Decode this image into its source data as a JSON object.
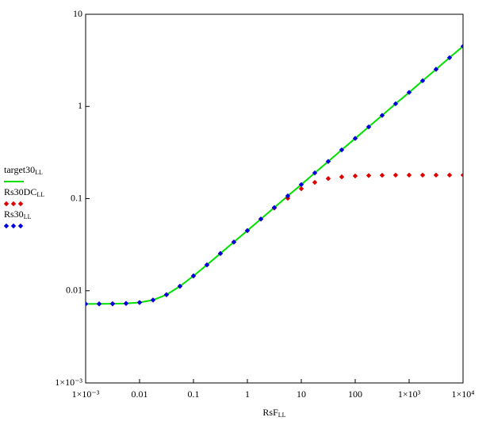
{
  "chart_data": {
    "type": "line",
    "log_x": true,
    "log_y": true,
    "grid": false,
    "x_label": {
      "text": "RsF",
      "subscript": "LL"
    },
    "x": [
      0.001,
      0.00178,
      0.00316,
      0.00562,
      0.01,
      0.0178,
      0.0316,
      0.0562,
      0.1,
      0.178,
      0.316,
      0.562,
      1,
      1.78,
      3.16,
      5.62,
      10,
      17.8,
      31.6,
      56.2,
      100,
      178,
      316,
      562,
      1000,
      1780,
      3160,
      5620,
      10000
    ],
    "series": [
      {
        "name": "target30",
        "name_subscript": "LL",
        "style": "line",
        "color": "#00e000",
        "values": [
          0.0072,
          0.00721,
          0.00723,
          0.00729,
          0.00746,
          0.00794,
          0.00907,
          0.0112,
          0.0145,
          0.0191,
          0.0254,
          0.0338,
          0.045,
          0.06,
          0.08,
          0.107,
          0.142,
          0.19,
          0.253,
          0.338,
          0.45,
          0.6,
          0.8,
          1.07,
          1.42,
          1.9,
          2.53,
          3.38,
          4.5
        ]
      },
      {
        "name": "Rs30DC",
        "name_subscript": "LL",
        "style": "points",
        "color": "#e00000",
        "values": [
          0.0072,
          0.00721,
          0.00723,
          0.00729,
          0.00746,
          0.00794,
          0.00907,
          0.0112,
          0.0145,
          0.0191,
          0.0254,
          0.0338,
          0.045,
          0.06,
          0.079,
          0.101,
          0.128,
          0.15,
          0.165,
          0.172,
          0.176,
          0.178,
          0.179,
          0.18,
          0.18,
          0.18,
          0.18,
          0.18,
          0.18
        ]
      },
      {
        "name": "Rs30",
        "name_subscript": "LL",
        "style": "points",
        "color": "#0000e0",
        "values": [
          0.0072,
          0.00721,
          0.00723,
          0.00729,
          0.00746,
          0.00794,
          0.00907,
          0.0112,
          0.0145,
          0.0191,
          0.0254,
          0.0338,
          0.045,
          0.06,
          0.08,
          0.107,
          0.142,
          0.19,
          0.253,
          0.338,
          0.45,
          0.6,
          0.8,
          1.07,
          1.42,
          1.9,
          2.53,
          3.38,
          4.5
        ]
      }
    ],
    "xlim": [
      0.001,
      10000
    ],
    "ylim": [
      0.001,
      10
    ],
    "xticks": [
      {
        "value": 0.001,
        "label": "1×10⁻³"
      },
      0.01,
      0.1,
      1,
      10,
      100,
      {
        "value": 1000,
        "label": "1×10³"
      },
      {
        "value": 10000,
        "label": "1×10⁴"
      }
    ],
    "yticks": [
      {
        "value": 0.001,
        "label": "1×10⁻³"
      },
      0.01,
      0.1,
      1,
      10
    ]
  }
}
